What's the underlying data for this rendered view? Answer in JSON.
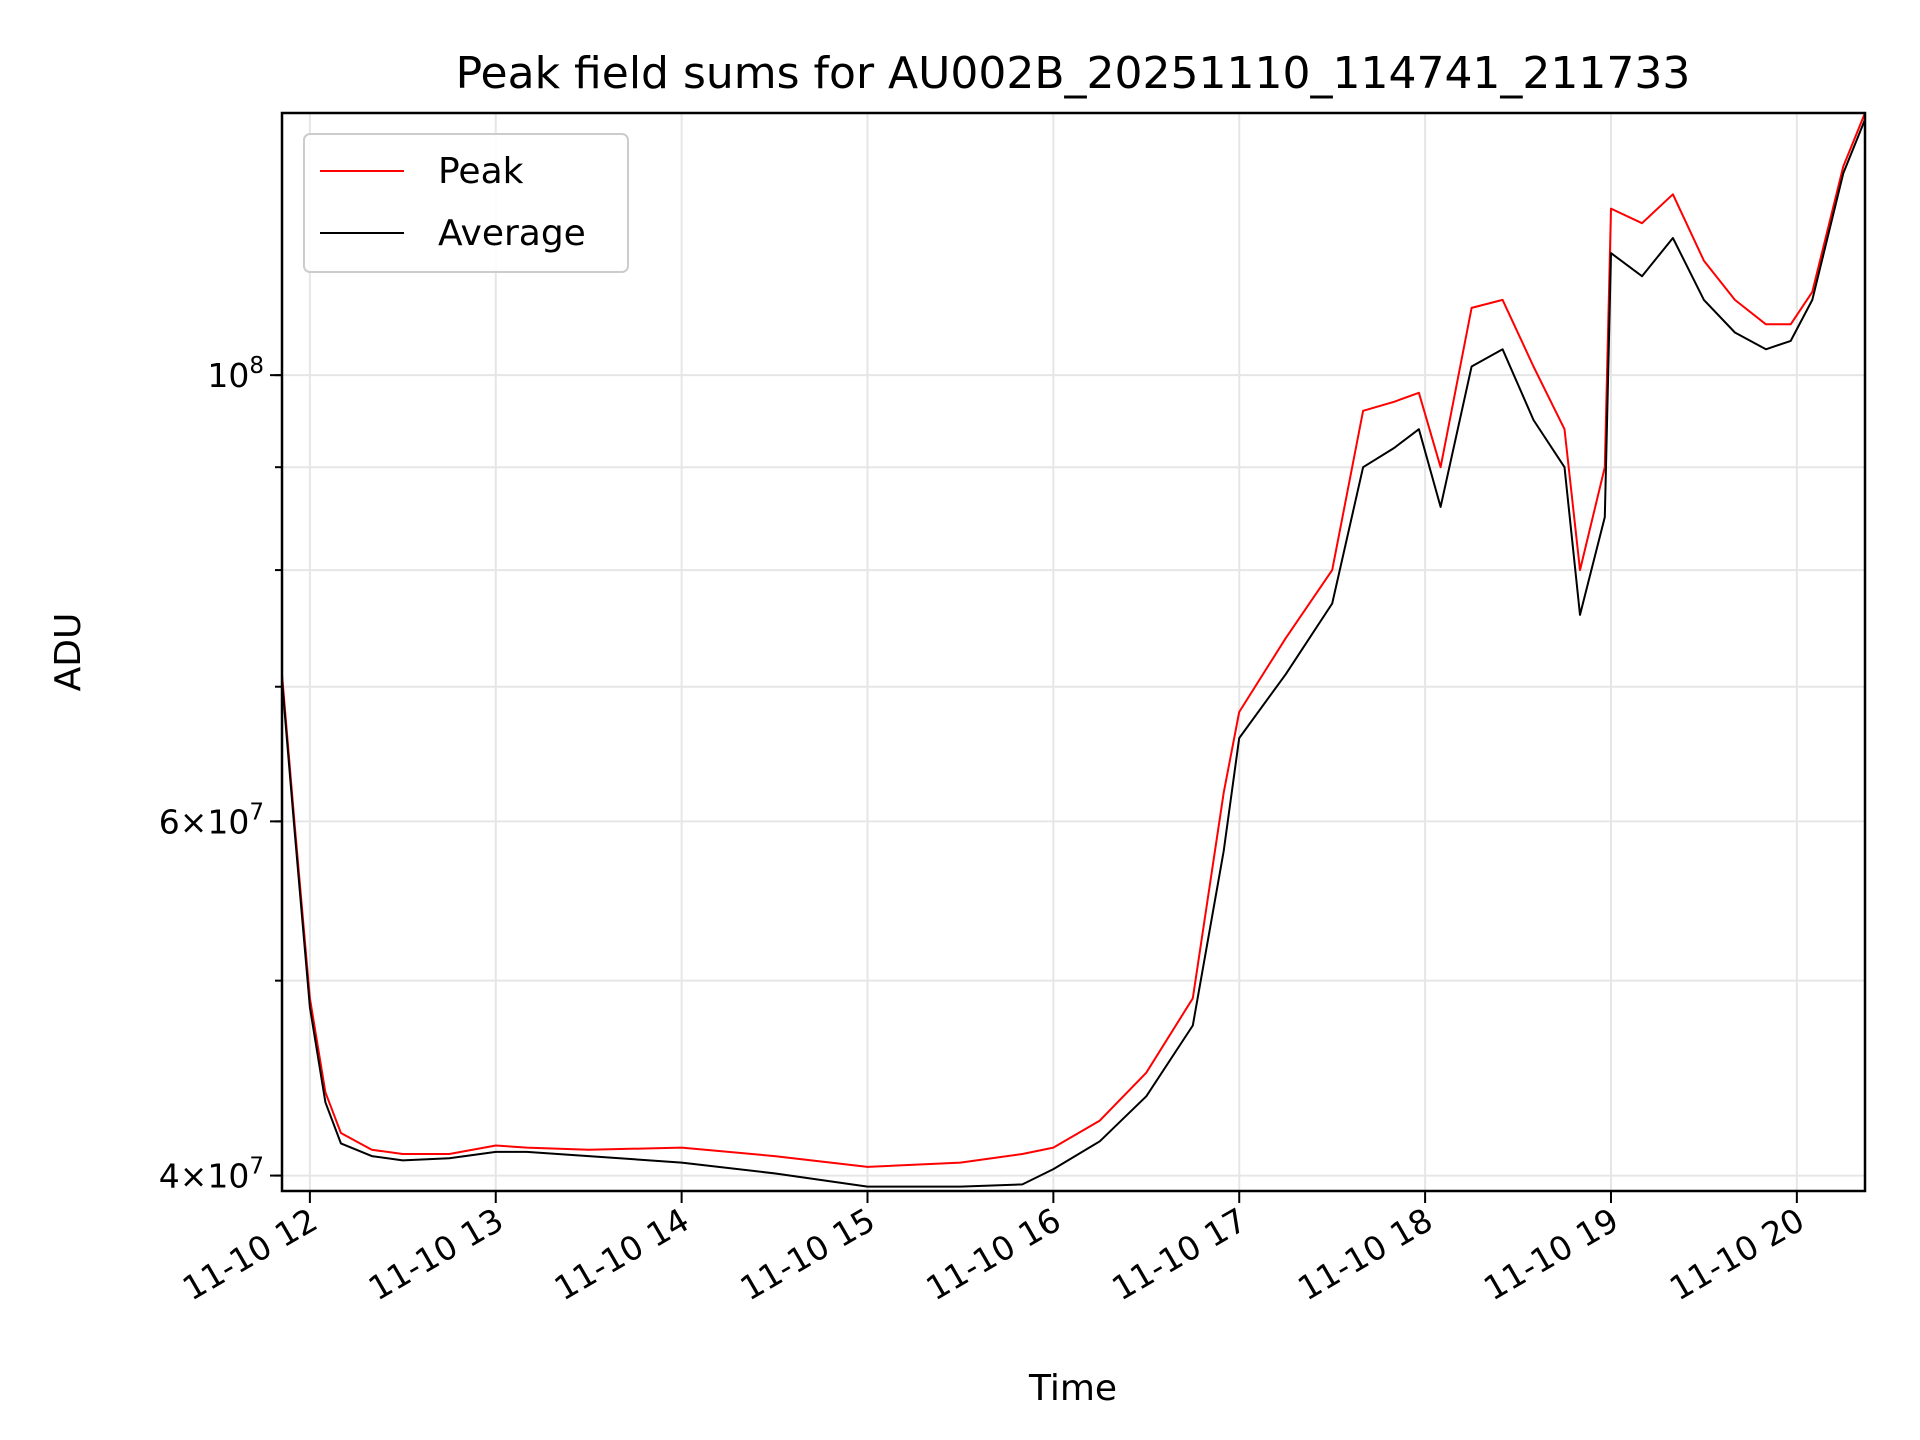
{
  "chart_data": {
    "type": "line",
    "title": "Peak field sums for AU002B_20251110_114741_211733",
    "xlabel": "Time",
    "ylabel": "ADU",
    "yscale": "log",
    "xlim": [
      "2025-11-10 11:51",
      "2025-11-10 20:22"
    ],
    "ylim": [
      39300000,
      135000000
    ],
    "grid": true,
    "legend_position": "top-left",
    "x_ticks": [
      "11-10 12",
      "11-10 13",
      "11-10 14",
      "11-10 15",
      "11-10 16",
      "11-10 17",
      "11-10 18",
      "11-10 19",
      "11-10 20"
    ],
    "y_ticks": [
      {
        "label_base": "4",
        "label_exp": "7",
        "value": 40000000
      },
      {
        "label_base": "6",
        "label_exp": "7",
        "value": 60000000
      },
      {
        "label_base": "",
        "label_exp": "8",
        "value": 100000000
      }
    ],
    "series": [
      {
        "name": "Peak",
        "color": "#ff0000",
        "x": [
          "2025-11-10 11:51",
          "2025-11-10 11:55",
          "2025-11-10 12:00",
          "2025-11-10 12:05",
          "2025-11-10 12:10",
          "2025-11-10 12:20",
          "2025-11-10 12:30",
          "2025-11-10 12:45",
          "2025-11-10 13:00",
          "2025-11-10 13:10",
          "2025-11-10 13:30",
          "2025-11-10 14:00",
          "2025-11-10 14:30",
          "2025-11-10 15:00",
          "2025-11-10 15:30",
          "2025-11-10 15:50",
          "2025-11-10 16:00",
          "2025-11-10 16:15",
          "2025-11-10 16:30",
          "2025-11-10 16:45",
          "2025-11-10 16:55",
          "2025-11-10 17:00",
          "2025-11-10 17:15",
          "2025-11-10 17:30",
          "2025-11-10 17:40",
          "2025-11-10 17:50",
          "2025-11-10 17:58",
          "2025-11-10 18:05",
          "2025-11-10 18:15",
          "2025-11-10 18:25",
          "2025-11-10 18:35",
          "2025-11-10 18:45",
          "2025-11-10 18:50",
          "2025-11-10 18:58",
          "2025-11-10 19:00",
          "2025-11-10 19:10",
          "2025-11-10 19:20",
          "2025-11-10 19:30",
          "2025-11-10 19:40",
          "2025-11-10 19:50",
          "2025-11-10 19:58",
          "2025-11-10 20:05",
          "2025-11-10 20:15",
          "2025-11-10 20:22"
        ],
        "values": [
          71000000,
          60000000,
          49000000,
          44000000,
          42000000,
          41200000,
          41000000,
          41000000,
          41400000,
          41300000,
          41200000,
          41300000,
          40900000,
          40400000,
          40600000,
          41000000,
          41300000,
          42600000,
          45000000,
          49000000,
          62000000,
          68000000,
          74000000,
          80000000,
          96000000,
          97000000,
          98000000,
          90000000,
          108000000,
          109000000,
          101000000,
          94000000,
          80000000,
          90000000,
          121000000,
          119000000,
          123000000,
          114000000,
          109000000,
          106000000,
          106000000,
          110000000,
          127000000,
          135000000
        ]
      },
      {
        "name": "Average",
        "color": "#000000",
        "x": [
          "2025-11-10 11:51",
          "2025-11-10 11:55",
          "2025-11-10 12:00",
          "2025-11-10 12:05",
          "2025-11-10 12:10",
          "2025-11-10 12:20",
          "2025-11-10 12:30",
          "2025-11-10 12:45",
          "2025-11-10 13:00",
          "2025-11-10 13:10",
          "2025-11-10 13:30",
          "2025-11-10 14:00",
          "2025-11-10 14:30",
          "2025-11-10 15:00",
          "2025-11-10 15:30",
          "2025-11-10 15:50",
          "2025-11-10 16:00",
          "2025-11-10 16:15",
          "2025-11-10 16:30",
          "2025-11-10 16:45",
          "2025-11-10 16:55",
          "2025-11-10 17:00",
          "2025-11-10 17:15",
          "2025-11-10 17:30",
          "2025-11-10 17:40",
          "2025-11-10 17:50",
          "2025-11-10 17:58",
          "2025-11-10 18:05",
          "2025-11-10 18:15",
          "2025-11-10 18:25",
          "2025-11-10 18:35",
          "2025-11-10 18:45",
          "2025-11-10 18:50",
          "2025-11-10 18:58",
          "2025-11-10 19:00",
          "2025-11-10 19:10",
          "2025-11-10 19:20",
          "2025-11-10 19:30",
          "2025-11-10 19:40",
          "2025-11-10 19:50",
          "2025-11-10 19:58",
          "2025-11-10 20:05",
          "2025-11-10 20:15",
          "2025-11-10 20:22"
        ],
        "values": [
          70500000,
          59500000,
          48500000,
          43500000,
          41500000,
          40900000,
          40700000,
          40800000,
          41100000,
          41100000,
          40900000,
          40600000,
          40100000,
          39500000,
          39500000,
          39600000,
          40300000,
          41600000,
          43800000,
          47500000,
          58000000,
          66000000,
          71000000,
          77000000,
          90000000,
          92000000,
          94000000,
          86000000,
          101000000,
          103000000,
          95000000,
          90000000,
          76000000,
          85000000,
          115000000,
          112000000,
          117000000,
          109000000,
          105000000,
          103000000,
          104000000,
          109000000,
          126000000,
          134000000
        ]
      }
    ]
  }
}
